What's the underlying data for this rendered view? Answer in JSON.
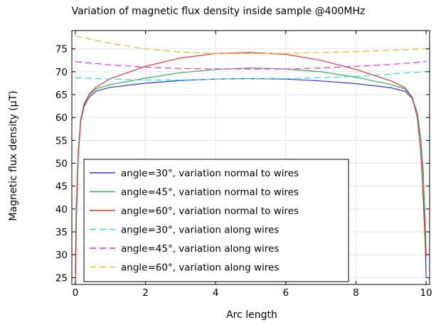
{
  "chart_data": {
    "type": "line",
    "title": "Variation of magnetic flux density inside sample @400MHz",
    "xlabel": "Arc length",
    "ylabel": "Magnetic flux density (μT)",
    "xlim": [
      -0.1,
      10.1
    ],
    "ylim": [
      23.5,
      79
    ],
    "xticks": [
      0,
      2,
      4,
      6,
      8,
      10
    ],
    "yticks": [
      25,
      30,
      35,
      40,
      45,
      50,
      55,
      60,
      65,
      70,
      75
    ],
    "grid": true,
    "legend_position": "lower-left",
    "series": [
      {
        "name": "angle=30°, variation normal to wires",
        "color": "#3333cc",
        "dash": "solid",
        "x": [
          0,
          0.03,
          0.08,
          0.15,
          0.25,
          0.4,
          0.6,
          1,
          2,
          3,
          4,
          5,
          6,
          7,
          8,
          9,
          9.4,
          9.6,
          9.75,
          9.85,
          9.92,
          9.97,
          10
        ],
        "y": [
          26,
          40,
          52,
          59,
          62.5,
          64.5,
          65.8,
          66.6,
          67.5,
          68.1,
          68.4,
          68.5,
          68.4,
          68,
          67.4,
          66.5,
          65.7,
          64.2,
          61,
          55,
          48,
          34,
          25
        ]
      },
      {
        "name": "angle=45°, variation normal to wires",
        "color": "#33aa55",
        "dash": "solid",
        "x": [
          0,
          0.03,
          0.08,
          0.15,
          0.25,
          0.4,
          0.6,
          1,
          2,
          3,
          4,
          5,
          6,
          7,
          8,
          9,
          9.4,
          9.6,
          9.75,
          9.85,
          9.92,
          9.97,
          10
        ],
        "y": [
          27,
          41,
          52.5,
          59.5,
          63,
          65,
          66.3,
          67.2,
          68.6,
          69.8,
          70.5,
          70.8,
          70.6,
          70,
          68.8,
          67.2,
          66.2,
          64.5,
          61,
          55,
          47,
          38,
          30
        ]
      },
      {
        "name": "angle=60°, variation normal to wires",
        "color": "#dd3333",
        "dash": "solid",
        "x": [
          0,
          0.03,
          0.08,
          0.15,
          0.25,
          0.4,
          0.6,
          1,
          2,
          3,
          4,
          5,
          6,
          7,
          8,
          9,
          9.4,
          9.6,
          9.75,
          9.85,
          9.92,
          9.97,
          10
        ],
        "y": [
          22,
          38,
          51,
          59,
          63,
          65.2,
          66.7,
          68.5,
          71.2,
          73,
          74,
          74.2,
          73.8,
          72.5,
          70.5,
          68,
          66.5,
          64.5,
          60,
          52,
          42,
          33,
          29
        ]
      },
      {
        "name": "angle=30°, variation along wires",
        "color": "#33dddd",
        "dash": "dashed",
        "x": [
          0,
          1,
          2,
          3,
          4,
          5,
          6,
          7,
          8,
          9,
          10
        ],
        "y": [
          68.7,
          68.4,
          68.2,
          68.2,
          68.4,
          68.5,
          68.5,
          68.7,
          69,
          69.5,
          70
        ]
      },
      {
        "name": "angle=45°, variation along wires",
        "color": "#dd33dd",
        "dash": "dashed",
        "x": [
          0,
          1,
          2,
          3,
          4,
          5,
          6,
          7,
          8,
          9,
          10
        ],
        "y": [
          72.2,
          71.5,
          71,
          70.7,
          70.6,
          70.6,
          70.6,
          70.8,
          71.2,
          71.6,
          72.2
        ]
      },
      {
        "name": "angle=60°, variation along wires",
        "color": "#ddbb33",
        "dash": "dashed",
        "x": [
          0,
          1,
          2,
          3,
          4,
          5,
          6,
          7,
          8,
          9,
          10
        ],
        "y": [
          77.8,
          76.2,
          75,
          74.3,
          74,
          74,
          74,
          74.2,
          74.4,
          74.7,
          75
        ]
      }
    ]
  }
}
